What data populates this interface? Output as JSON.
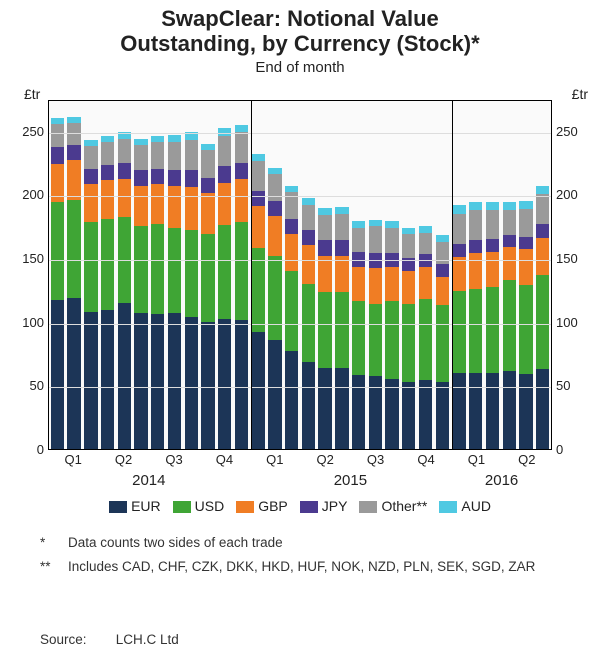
{
  "title_line1": "SwapClear: Notional Value",
  "title_line2": "Outstanding, by Currency (Stock)*",
  "subtitle": "End of month",
  "y_unit": "£tr",
  "y_max": 275,
  "y_ticks": [
    0,
    50,
    100,
    150,
    200,
    250
  ],
  "series": [
    {
      "key": "EUR",
      "label": "EUR",
      "color": "#1c3557"
    },
    {
      "key": "USD",
      "label": "USD",
      "color": "#3fa535"
    },
    {
      "key": "GBP",
      "label": "GBP",
      "color": "#f07d24"
    },
    {
      "key": "JPY",
      "label": "JPY",
      "color": "#4b3a8f"
    },
    {
      "key": "Other",
      "label": "Other**",
      "color": "#9a9a9a"
    },
    {
      "key": "AUD",
      "label": "AUD",
      "color": "#4fc9e2"
    }
  ],
  "quarter_labels": [
    {
      "label": "Q1",
      "center_idx": 1
    },
    {
      "label": "Q2",
      "center_idx": 4
    },
    {
      "label": "Q3",
      "center_idx": 7
    },
    {
      "label": "Q4",
      "center_idx": 10
    },
    {
      "label": "Q1",
      "center_idx": 13
    },
    {
      "label": "Q2",
      "center_idx": 16
    },
    {
      "label": "Q3",
      "center_idx": 19
    },
    {
      "label": "Q4",
      "center_idx": 22
    },
    {
      "label": "Q1",
      "center_idx": 25
    },
    {
      "label": "Q2",
      "center_idx": 28
    }
  ],
  "year_labels": [
    {
      "label": "2014",
      "center_idx": 5.5
    },
    {
      "label": "2015",
      "center_idx": 17.5
    },
    {
      "label": "2016",
      "center_idx": 26.5
    }
  ],
  "year_dividers": [
    12,
    24
  ],
  "bars": [
    {
      "EUR": 117,
      "USD": 77,
      "GBP": 30,
      "JPY": 13,
      "Other": 18,
      "AUD": 5
    },
    {
      "EUR": 119,
      "USD": 77,
      "GBP": 31,
      "JPY": 12,
      "Other": 17,
      "AUD": 5
    },
    {
      "EUR": 108,
      "USD": 70,
      "GBP": 30,
      "JPY": 12,
      "Other": 18,
      "AUD": 5
    },
    {
      "EUR": 109,
      "USD": 72,
      "GBP": 30,
      "JPY": 12,
      "Other": 18,
      "AUD": 5
    },
    {
      "EUR": 115,
      "USD": 67,
      "GBP": 30,
      "JPY": 13,
      "Other": 19,
      "AUD": 5
    },
    {
      "EUR": 107,
      "USD": 68,
      "GBP": 32,
      "JPY": 12,
      "Other": 20,
      "AUD": 5
    },
    {
      "EUR": 106,
      "USD": 71,
      "GBP": 31,
      "JPY": 12,
      "Other": 21,
      "AUD": 5
    },
    {
      "EUR": 107,
      "USD": 67,
      "GBP": 33,
      "JPY": 12,
      "Other": 22,
      "AUD": 6
    },
    {
      "EUR": 104,
      "USD": 68,
      "GBP": 34,
      "JPY": 13,
      "Other": 24,
      "AUD": 6
    },
    {
      "EUR": 100,
      "USD": 69,
      "GBP": 32,
      "JPY": 12,
      "Other": 22,
      "AUD": 5
    },
    {
      "EUR": 102,
      "USD": 74,
      "GBP": 33,
      "JPY": 13,
      "Other": 24,
      "AUD": 6
    },
    {
      "EUR": 101,
      "USD": 77,
      "GBP": 34,
      "JPY": 13,
      "Other": 24,
      "AUD": 6
    },
    {
      "EUR": 92,
      "USD": 66,
      "GBP": 33,
      "JPY": 12,
      "Other": 23,
      "AUD": 6
    },
    {
      "EUR": 86,
      "USD": 66,
      "GBP": 31,
      "JPY": 12,
      "Other": 21,
      "AUD": 5
    },
    {
      "EUR": 77,
      "USD": 63,
      "GBP": 29,
      "JPY": 12,
      "Other": 21,
      "AUD": 5
    },
    {
      "EUR": 68,
      "USD": 62,
      "GBP": 30,
      "JPY": 12,
      "Other": 20,
      "AUD": 5
    },
    {
      "EUR": 64,
      "USD": 59,
      "GBP": 29,
      "JPY": 12,
      "Other": 20,
      "AUD": 5
    },
    {
      "EUR": 64,
      "USD": 59,
      "GBP": 29,
      "JPY": 12,
      "Other": 21,
      "AUD": 5
    },
    {
      "EUR": 58,
      "USD": 58,
      "GBP": 27,
      "JPY": 12,
      "Other": 19,
      "AUD": 5
    },
    {
      "EUR": 57,
      "USD": 57,
      "GBP": 28,
      "JPY": 12,
      "Other": 21,
      "AUD": 5
    },
    {
      "EUR": 55,
      "USD": 61,
      "GBP": 27,
      "JPY": 11,
      "Other": 20,
      "AUD": 5
    },
    {
      "EUR": 53,
      "USD": 61,
      "GBP": 26,
      "JPY": 10,
      "Other": 19,
      "AUD": 5
    },
    {
      "EUR": 54,
      "USD": 64,
      "GBP": 25,
      "JPY": 10,
      "Other": 17,
      "AUD": 5
    },
    {
      "EUR": 53,
      "USD": 60,
      "GBP": 22,
      "JPY": 10,
      "Other": 18,
      "AUD": 5
    },
    {
      "EUR": 60,
      "USD": 64,
      "GBP": 27,
      "JPY": 10,
      "Other": 24,
      "AUD": 7
    },
    {
      "EUR": 60,
      "USD": 66,
      "GBP": 28,
      "JPY": 10,
      "Other": 24,
      "AUD": 6
    },
    {
      "EUR": 60,
      "USD": 67,
      "GBP": 28,
      "JPY": 10,
      "Other": 23,
      "AUD": 6
    },
    {
      "EUR": 61,
      "USD": 72,
      "GBP": 26,
      "JPY": 9,
      "Other": 20,
      "AUD": 6
    },
    {
      "EUR": 59,
      "USD": 70,
      "GBP": 28,
      "JPY": 10,
      "Other": 22,
      "AUD": 6
    },
    {
      "EUR": 63,
      "USD": 74,
      "GBP": 29,
      "JPY": 11,
      "Other": 23,
      "AUD": 7
    }
  ],
  "footnotes": [
    {
      "mark": "*",
      "text": "Data counts two sides of each trade"
    },
    {
      "mark": "**",
      "text": "Includes CAD, CHF, CZK, DKK, HKD, HUF, NOK, NZD, PLN, SEK, SGD, ZAR"
    }
  ],
  "source_label": "Source:",
  "source_text": "LCH.C Ltd"
}
